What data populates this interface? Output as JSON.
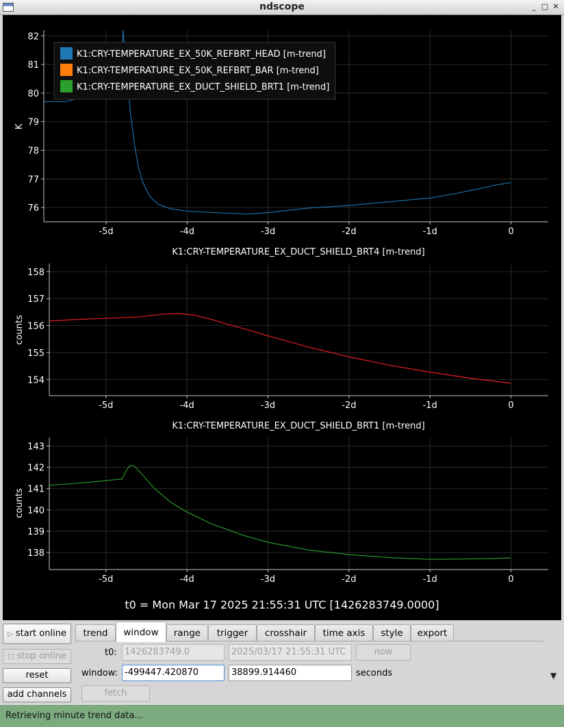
{
  "window": {
    "title": "ndscope"
  },
  "plots": [
    {
      "id": "p1",
      "title": "",
      "ylabel": "K",
      "yticks": [
        "82",
        "81",
        "80",
        "79",
        "78",
        "77",
        "76"
      ],
      "xticks": [
        "-5d",
        "-4d",
        "-3d",
        "-2d",
        "-1d",
        "0"
      ],
      "legend": [
        {
          "label": "K1:CRY-TEMPERATURE_EX_50K_REFBRT_HEAD [m-trend]",
          "color": "#1f77b4"
        },
        {
          "label": "K1:CRY-TEMPERATURE_EX_50K_REFBRT_BAR [m-trend]",
          "color": "#ff7f0e"
        },
        {
          "label": "K1:CRY-TEMPERATURE_EX_DUCT_SHIELD_BRT1 [m-trend]",
          "color": "#2ca02c"
        }
      ]
    },
    {
      "id": "p2",
      "title": "K1:CRY-TEMPERATURE_EX_DUCT_SHIELD_BRT4 [m-trend]",
      "ylabel": "counts",
      "yticks": [
        "158",
        "157",
        "156",
        "155",
        "154"
      ],
      "xticks": [
        "-5d",
        "-4d",
        "-3d",
        "-2d",
        "-1d",
        "0"
      ]
    },
    {
      "id": "p3",
      "title": "K1:CRY-TEMPERATURE_EX_DUCT_SHIELD_BRT1 [m-trend]",
      "ylabel": "counts",
      "yticks": [
        "143",
        "142",
        "141",
        "140",
        "139",
        "138"
      ],
      "xticks": [
        "-5d",
        "-4d",
        "-3d",
        "-2d",
        "-1d",
        "0"
      ]
    }
  ],
  "t0_label": "t0 = Mon Mar 17 2025 21:55:31 UTC [1426283749.0000]",
  "chart_data": [
    {
      "type": "line",
      "ylabel": "K",
      "xunit": "days",
      "xlim": [
        -5.77,
        0.46
      ],
      "ylim": [
        75.5,
        82.2
      ],
      "series": [
        {
          "name": "K1:CRY-TEMPERATURE_EX_50K_REFBRT_HEAD [m-trend]",
          "color": "#1f77b4",
          "x": [
            -5.77,
            -5.5,
            -5.3,
            -5.1,
            -4.95,
            -4.83,
            -4.81,
            -4.79,
            -4.75,
            -4.7,
            -4.65,
            -4.6,
            -4.55,
            -4.5,
            -4.45,
            -4.35,
            -4.2,
            -4.0,
            -3.5,
            -3.25,
            -3.0,
            -2.5,
            -2.0,
            -1.5,
            -1.0,
            -0.7,
            -0.4,
            -0.2,
            0.0
          ],
          "y": [
            79.7,
            79.7,
            79.85,
            79.97,
            80.05,
            80.1,
            80.5,
            82.2,
            80.8,
            79.3,
            78.2,
            77.4,
            76.9,
            76.6,
            76.35,
            76.1,
            75.95,
            75.87,
            75.8,
            75.77,
            75.82,
            75.98,
            76.07,
            76.2,
            76.33,
            76.48,
            76.65,
            76.78,
            76.87
          ]
        },
        {
          "name": "K1:CRY-TEMPERATURE_EX_50K_REFBRT_BAR [m-trend]",
          "color": "#ff7f0e",
          "x": [],
          "y": []
        },
        {
          "name": "K1:CRY-TEMPERATURE_EX_DUCT_SHIELD_BRT1 [m-trend]",
          "color": "#2ca02c",
          "x": [],
          "y": []
        }
      ]
    },
    {
      "type": "line",
      "title": "K1:CRY-TEMPERATURE_EX_DUCT_SHIELD_BRT4 [m-trend]",
      "ylabel": "counts",
      "xunit": "days",
      "xlim": [
        -5.7,
        0.46
      ],
      "ylim": [
        153.4,
        158.3
      ],
      "series": [
        {
          "color": "#ff2020",
          "x": [
            -5.7,
            -5.4,
            -5.0,
            -4.6,
            -4.3,
            -4.1,
            -3.9,
            -3.7,
            -3.5,
            -3.2,
            -3.0,
            -2.5,
            -2.0,
            -1.5,
            -1.0,
            -0.5,
            0.0
          ],
          "y": [
            156.17,
            156.22,
            156.27,
            156.32,
            156.42,
            156.45,
            156.38,
            156.23,
            156.05,
            155.8,
            155.62,
            155.2,
            154.84,
            154.53,
            154.27,
            154.05,
            153.86
          ]
        }
      ]
    },
    {
      "type": "line",
      "title": "K1:CRY-TEMPERATURE_EX_DUCT_SHIELD_BRT1 [m-trend]",
      "ylabel": "counts",
      "xunit": "days",
      "xlim": [
        -5.7,
        0.46
      ],
      "ylim": [
        137.2,
        143.4
      ],
      "series": [
        {
          "color": "#2ca02c",
          "x": [
            -5.7,
            -5.2,
            -4.8,
            -4.75,
            -4.7,
            -4.65,
            -4.55,
            -4.4,
            -4.2,
            -4.0,
            -3.7,
            -3.3,
            -3.0,
            -2.5,
            -2.0,
            -1.5,
            -1.0,
            -0.5,
            -0.2,
            0.0
          ],
          "y": [
            141.15,
            141.3,
            141.45,
            141.85,
            142.1,
            142.05,
            141.65,
            141.0,
            140.35,
            139.9,
            139.35,
            138.8,
            138.48,
            138.12,
            137.9,
            137.76,
            137.68,
            137.7,
            137.72,
            137.75
          ]
        }
      ]
    }
  ],
  "controls": {
    "start_online": "start online",
    "stop_online": "stop online",
    "reset": "reset",
    "add_channels": "add channels",
    "tabs": [
      "trend",
      "window",
      "range",
      "trigger",
      "crosshair",
      "time axis",
      "style",
      "export"
    ],
    "active_tab": "window",
    "t0_label": "t0:",
    "t0_gps": "1426283749.0",
    "t0_utc": "2025/03/17 21:55:31 UTC",
    "now": "now",
    "window_label": "window:",
    "window_start": "-499447.420870",
    "window_end": "38899.914460",
    "seconds": "seconds",
    "fetch": "fetch"
  },
  "status": "Retrieving minute trend data..."
}
